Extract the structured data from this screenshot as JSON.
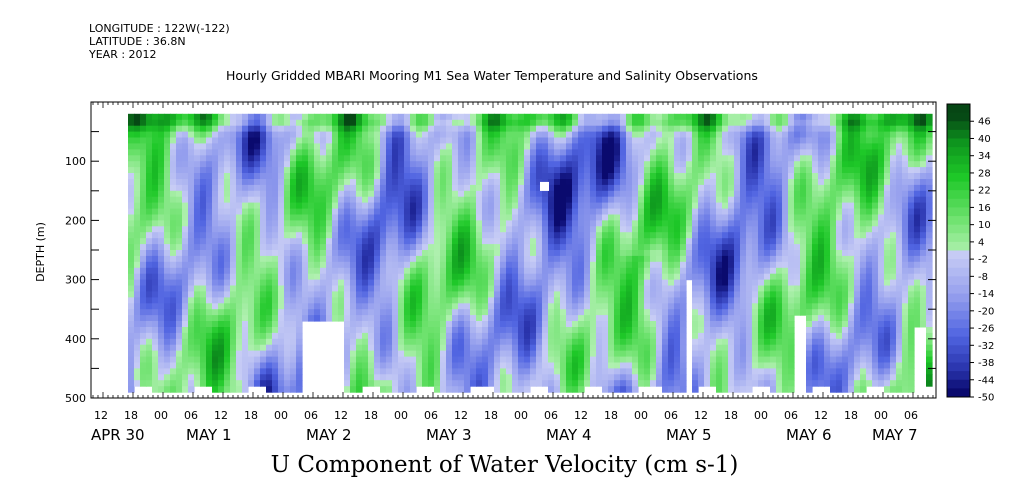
{
  "meta": {
    "longitude": "LONGITUDE : 122W(-122)",
    "latitude": "LATITUDE : 36.8N",
    "year": "YEAR : 2012"
  },
  "title": "Hourly Gridded MBARI Mooring M1 Sea Water Temperature and Salinity Observations",
  "subtitle": "U Component of Water Velocity (cm s-1)",
  "chart_data": {
    "type": "heatmap",
    "ylabel": "DEPTH (m)",
    "ylim": [
      500,
      0
    ],
    "yticks": [
      "100",
      "200",
      "300",
      "400",
      "500"
    ],
    "yticks_values": [
      100,
      200,
      300,
      400,
      500
    ],
    "x_hour_labels": [
      "12",
      "18",
      "00",
      "06",
      "12",
      "18",
      "00",
      "06",
      "12",
      "18",
      "00",
      "06",
      "12",
      "18",
      "00",
      "06",
      "12",
      "18",
      "00",
      "06",
      "12",
      "18",
      "00",
      "06",
      "12",
      "18",
      "00",
      "06"
    ],
    "x_date_labels": [
      "APR 30",
      "MAY  1",
      "MAY  2",
      "MAY  3",
      "MAY  4",
      "MAY  5",
      "MAY  6",
      "MAY  7"
    ],
    "colorbar": {
      "labels": [
        "46",
        "40",
        "34",
        "28",
        "22",
        "16",
        "10",
        "4",
        "-2",
        "-8",
        "-14",
        "-20",
        "-26",
        "-32",
        "-38",
        "-44",
        "-50"
      ],
      "min": -50,
      "max": 52,
      "step": 3
    },
    "value_range": [
      -50,
      46
    ],
    "data_start": "APR 30 18:00",
    "data_depth_range": [
      20,
      485
    ]
  }
}
